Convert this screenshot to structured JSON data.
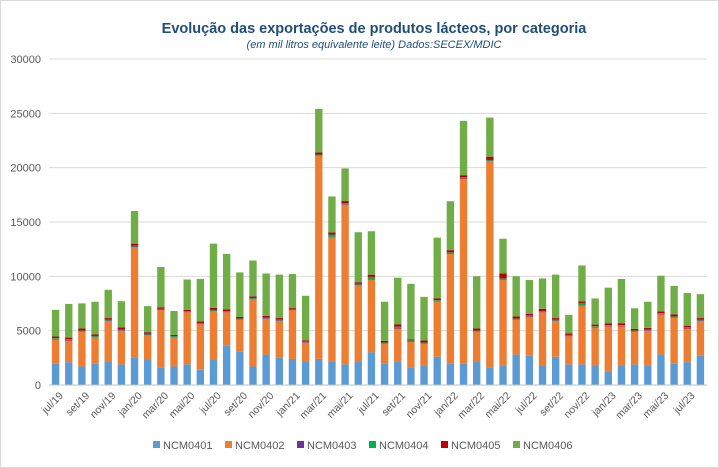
{
  "chart_data": {
    "type": "bar",
    "stacked": true,
    "title": "Evolução das exportações de produtos lácteos, por categoria",
    "subtitle": "(em mil litros equivalente leite) Dados:SECEX/MDIC",
    "xlabel": "",
    "ylabel": "",
    "ylim": [
      0,
      30000
    ],
    "yticks": [
      0,
      5000,
      10000,
      15000,
      20000,
      25000,
      30000
    ],
    "ytick_labels": [
      "0",
      "5000",
      "10000",
      "15000",
      "20000",
      "25000",
      "30000"
    ],
    "grid": true,
    "legend_position": "bottom",
    "categories": [
      "jul/19",
      "ago/19",
      "set/19",
      "out/19",
      "nov/19",
      "dez/19",
      "jan/20",
      "fev/20",
      "mar/20",
      "abr/20",
      "mai/20",
      "jun/20",
      "jul/20",
      "ago/20",
      "set/20",
      "out/20",
      "nov/20",
      "dez/20",
      "jan/21",
      "fev/21",
      "mar/21",
      "abr/21",
      "mai/21",
      "jun/21",
      "jul/21",
      "ago/21",
      "set/21",
      "out/21",
      "nov/21",
      "dez/21",
      "jan/22",
      "fev/22",
      "mar/22",
      "abr/22",
      "mai/22",
      "jun/22",
      "jul/22",
      "ago/22",
      "set/22",
      "out/22",
      "nov/22",
      "dez/22",
      "jan/23",
      "fev/23",
      "mar/23",
      "abr/23",
      "mai/23",
      "jun/23",
      "jul/23",
      "ago/23"
    ],
    "x_tick_labels": [
      "jul/19",
      "set/19",
      "nov/19",
      "jan/20",
      "mar/20",
      "mai/20",
      "jul/20",
      "set/20",
      "nov/20",
      "jan/21",
      "mar/21",
      "mai/21",
      "jul/21",
      "set/21",
      "nov/21",
      "jan/22",
      "mar/22",
      "mai/22",
      "jul/22",
      "set/22",
      "nov/22",
      "jan/23",
      "mar/23",
      "mai/23",
      "jul/23"
    ],
    "series": [
      {
        "name": "NCM0401",
        "color": "#5b9bd5",
        "values": [
          2000,
          2100,
          1700,
          2000,
          2200,
          1900,
          2500,
          2300,
          1600,
          1700,
          1900,
          1400,
          2300,
          3600,
          3100,
          1700,
          2800,
          2500,
          2400,
          2200,
          2400,
          2200,
          1900,
          2200,
          3000,
          2000,
          2200,
          1600,
          1800,
          2600,
          2000,
          2000,
          2200,
          1600,
          1800,
          2800,
          2700,
          1800,
          2600,
          1900,
          1900,
          1800,
          1200,
          1800,
          1900,
          1800,
          2800,
          2000,
          2100,
          2700
        ]
      },
      {
        "name": "NCM0402",
        "color": "#ed7d31",
        "values": [
          2200,
          2000,
          3200,
          2400,
          3700,
          3100,
          10200,
          2300,
          5300,
          2700,
          4800,
          4200,
          4500,
          3100,
          2900,
          6200,
          3300,
          3400,
          4500,
          1700,
          18700,
          11400,
          14700,
          7000,
          6700,
          1800,
          3000,
          2400,
          2000,
          5100,
          10100,
          17000,
          2700,
          19000,
          7900,
          3200,
          3600,
          4900,
          3300,
          2600,
          5400,
          3500,
          4200,
          3600,
          3000,
          3200,
          3700,
          4200,
          3100,
          3200
        ]
      },
      {
        "name": "NCM0403",
        "color": "#7030a0",
        "values": [
          50,
          50,
          50,
          50,
          50,
          50,
          50,
          50,
          50,
          50,
          50,
          50,
          50,
          50,
          50,
          50,
          50,
          50,
          50,
          50,
          50,
          50,
          50,
          50,
          50,
          50,
          50,
          50,
          50,
          50,
          50,
          50,
          50,
          50,
          50,
          50,
          50,
          50,
          50,
          50,
          50,
          50,
          50,
          50,
          50,
          50,
          50,
          50,
          50,
          50
        ]
      },
      {
        "name": "NCM0404",
        "color": "#00b050",
        "values": [
          60,
          60,
          60,
          60,
          60,
          60,
          60,
          60,
          60,
          60,
          60,
          60,
          60,
          60,
          60,
          60,
          60,
          60,
          60,
          60,
          60,
          200,
          80,
          60,
          200,
          60,
          120,
          60,
          60,
          60,
          60,
          60,
          60,
          60,
          60,
          60,
          60,
          60,
          60,
          60,
          200,
          60,
          60,
          60,
          60,
          60,
          60,
          60,
          60,
          60
        ]
      },
      {
        "name": "NCM0405",
        "color": "#c00000",
        "values": [
          150,
          150,
          200,
          150,
          150,
          200,
          200,
          150,
          150,
          100,
          100,
          150,
          200,
          150,
          150,
          150,
          150,
          150,
          100,
          100,
          200,
          200,
          200,
          150,
          200,
          150,
          200,
          100,
          200,
          150,
          200,
          200,
          200,
          300,
          450,
          200,
          150,
          200,
          150,
          150,
          150,
          150,
          150,
          150,
          150,
          150,
          150,
          200,
          150,
          150
        ]
      },
      {
        "name": "NCM0406",
        "color": "#70ad47",
        "values": [
          2450,
          3100,
          2300,
          3000,
          2600,
          2400,
          3000,
          2400,
          3700,
          2200,
          2800,
          3900,
          5900,
          5100,
          4100,
          3300,
          3900,
          4000,
          3100,
          4100,
          4000,
          3300,
          3000,
          4600,
          4000,
          3600,
          4300,
          5100,
          4000,
          5600,
          4500,
          5000,
          4800,
          3600,
          3200,
          3700,
          3100,
          2800,
          4000,
          1700,
          3300,
          2400,
          3300,
          4100,
          1900,
          2400,
          3300,
          2600,
          3000,
          2200
        ]
      }
    ]
  }
}
